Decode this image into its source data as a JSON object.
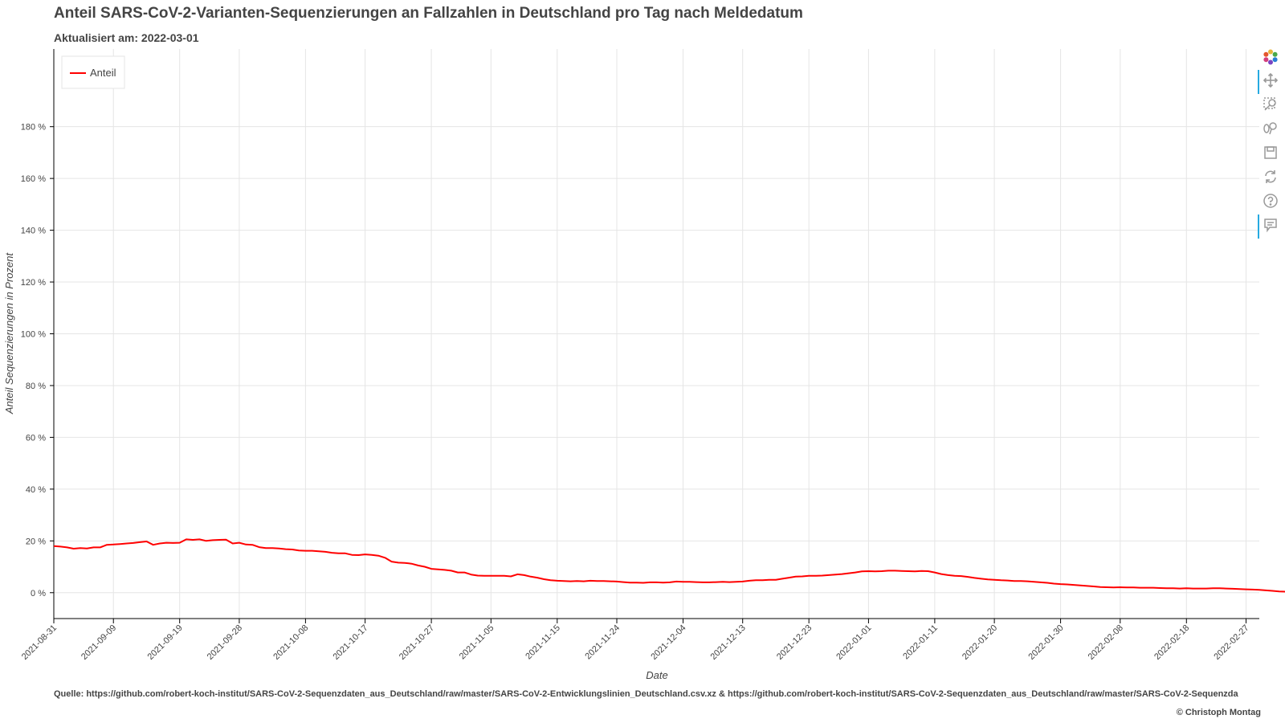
{
  "header": {
    "title": "Anteil SARS-CoV-2-Varianten-Sequenzierungen an Fallzahlen in Deutschland pro Tag nach Meldedatum",
    "subtitle": "Aktualisiert am: 2022-03-01"
  },
  "footer": {
    "source": "Quelle: https://github.com/robert-koch-institut/SARS-CoV-2-Sequenzdaten_aus_Deutschland/raw/master/SARS-CoV-2-Entwicklungslinien_Deutschland.csv.xz & https://github.com/robert-koch-institut/SARS-CoV-2-Sequenzdaten_aus_Deutschland/raw/master/SARS-CoV-2-Sequenzda",
    "credit": "© Christoph Montag"
  },
  "toolbar": {
    "tools": [
      {
        "name": "bokeh-logo-icon",
        "active": false
      },
      {
        "name": "pan-icon",
        "active": true
      },
      {
        "name": "box-zoom-icon",
        "active": false
      },
      {
        "name": "wheel-zoom-icon",
        "active": false
      },
      {
        "name": "save-icon",
        "active": false
      },
      {
        "name": "reset-icon",
        "active": false
      },
      {
        "name": "help-icon",
        "active": false
      },
      {
        "name": "hover-icon",
        "active": true
      }
    ]
  },
  "colors": {
    "line": "#ff0000",
    "grid": "#e5e5e5",
    "axis": "#000000",
    "accent": "#26aae1"
  },
  "chart_data": {
    "type": "line",
    "xlabel": "Date",
    "ylabel": "Anteil Sequenzierungen in Prozent",
    "legend": {
      "placement": "top-left",
      "entries": [
        "Anteil"
      ]
    },
    "grid": true,
    "x_start": "2021-08-31",
    "x_end": "2022-02-28",
    "xlim": [
      "2021-08-31",
      "2022-03-01"
    ],
    "ylim": [
      -10,
      210
    ],
    "x_ticks": [
      "2021-08-31",
      "2021-09-09",
      "2021-09-19",
      "2021-09-28",
      "2021-10-08",
      "2021-10-17",
      "2021-10-27",
      "2021-11-05",
      "2021-11-15",
      "2021-11-24",
      "2021-12-04",
      "2021-12-13",
      "2021-12-23",
      "2022-01-01",
      "2022-01-11",
      "2022-01-20",
      "2022-01-30",
      "2022-02-08",
      "2022-02-18",
      "2022-02-27"
    ],
    "y_ticks": [
      0,
      20,
      40,
      60,
      80,
      100,
      120,
      140,
      160,
      180
    ],
    "y_tick_labels": [
      "0 %",
      "20 %",
      "40 %",
      "60 %",
      "80 %",
      "100 %",
      "120 %",
      "140 %",
      "160 %",
      "180 %"
    ],
    "series": [
      {
        "name": "Anteil",
        "color": "#ff0000",
        "values": [
          18.0,
          17.8,
          17.5,
          17.0,
          17.2,
          17.1,
          17.5,
          17.5,
          18.5,
          18.6,
          18.8,
          19.0,
          19.2,
          19.5,
          19.8,
          18.5,
          19.0,
          19.3,
          19.2,
          19.3,
          20.6,
          20.4,
          20.6,
          20.0,
          20.3,
          20.4,
          20.5,
          19.0,
          19.3,
          18.6,
          18.5,
          17.6,
          17.2,
          17.2,
          17.1,
          16.8,
          16.7,
          16.3,
          16.2,
          16.2,
          16.0,
          15.8,
          15.4,
          15.2,
          15.2,
          14.6,
          14.5,
          14.8,
          14.6,
          14.3,
          13.5,
          12.0,
          11.6,
          11.5,
          11.2,
          10.5,
          10.0,
          9.2,
          9.0,
          8.8,
          8.5,
          7.8,
          7.8,
          7.0,
          6.6,
          6.5,
          6.5,
          6.5,
          6.5,
          6.3,
          7.1,
          6.8,
          6.2,
          5.8,
          5.2,
          4.8,
          4.6,
          4.5,
          4.4,
          4.5,
          4.4,
          4.6,
          4.5,
          4.5,
          4.4,
          4.3,
          4.1,
          3.9,
          3.9,
          3.8,
          4.0,
          4.0,
          3.9,
          4.0,
          4.3,
          4.2,
          4.2,
          4.1,
          4.0,
          4.0,
          4.1,
          4.2,
          4.1,
          4.2,
          4.3,
          4.6,
          4.8,
          4.8,
          5.0,
          5.0,
          5.4,
          5.8,
          6.2,
          6.3,
          6.5,
          6.5,
          6.6,
          6.8,
          7.0,
          7.2,
          7.5,
          7.8,
          8.2,
          8.3,
          8.2,
          8.3,
          8.5,
          8.5,
          8.4,
          8.3,
          8.2,
          8.4,
          8.3,
          7.8,
          7.2,
          6.8,
          6.5,
          6.4,
          6.1,
          5.7,
          5.4,
          5.1,
          5.0,
          4.8,
          4.7,
          4.5,
          4.5,
          4.4,
          4.2,
          4.0,
          3.8,
          3.5,
          3.3,
          3.2,
          3.0,
          2.8,
          2.6,
          2.4,
          2.2,
          2.1,
          2.0,
          2.1,
          2.0,
          2.0,
          1.9,
          1.9,
          1.9,
          1.8,
          1.7,
          1.7,
          1.6,
          1.7,
          1.6,
          1.6,
          1.6,
          1.7,
          1.7,
          1.6,
          1.5,
          1.4,
          1.3,
          1.2,
          1.1,
          0.9,
          0.7,
          0.5,
          0.4,
          0.3,
          0.2,
          0.1,
          0.0
        ]
      }
    ]
  }
}
